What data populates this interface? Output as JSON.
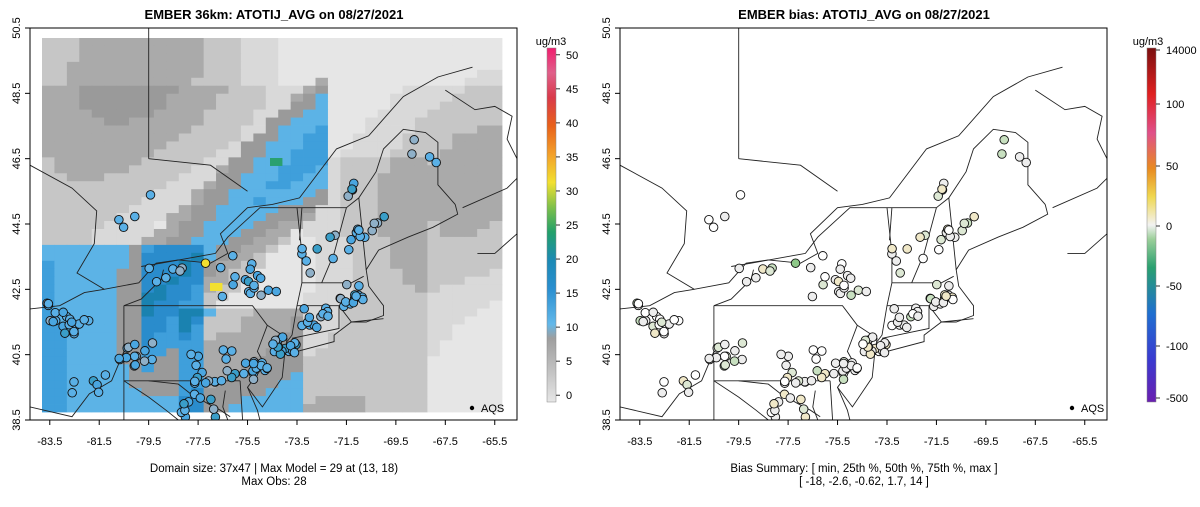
{
  "panels": [
    {
      "title": "EMBER 36km: ATOTIJ_AVG on 08/27/2021",
      "footer_line1": "Domain size: 37x47 | Max Model = 29 at (13, 18)",
      "footer_line2": "Max Obs: 28",
      "legend_label": "AQS"
    },
    {
      "title": "EMBER bias: ATOTIJ_AVG on 08/27/2021",
      "footer_line1": "Bias Summary: [ min, 25th %, 50th %, 75th %, max ]",
      "footer_line2": "[ -18,  -2.6,  -0.62,  1.7,  14 ]",
      "legend_label": "AQS"
    }
  ],
  "chart_data": [
    {
      "type": "heatmap",
      "title": "EMBER 36km: ATOTIJ_AVG on 08/27/2021",
      "xlabel": "",
      "ylabel": "",
      "x_ticks": [
        "-83.5",
        "-81.5",
        "-79.5",
        "-77.5",
        "-75.5",
        "-73.5",
        "-71.5",
        "-69.5",
        "-67.5",
        "-65.5"
      ],
      "y_ticks": [
        "38.5",
        "40.5",
        "42.5",
        "44.5",
        "46.5",
        "48.5",
        "50.5"
      ],
      "xlim": [
        -84.3,
        -64.6
      ],
      "ylim": [
        38.5,
        50.5
      ],
      "colorbar": {
        "unit": "ug/m3",
        "ticks": [
          "0",
          "5",
          "10",
          "15",
          "20",
          "25",
          "30",
          "35",
          "40",
          "45",
          "50"
        ],
        "range": [
          -1,
          51
        ],
        "colors": [
          "#d9d9d9",
          "#bdbdbd",
          "#9e9e9e",
          "#56b4e9",
          "#1f86c8",
          "#17a085",
          "#35a853",
          "#9bc53d",
          "#f2e030",
          "#f5a623",
          "#e8611a",
          "#d93a2a",
          "#e0457a",
          "#e85a8a",
          "#f0207a"
        ],
        "max_model": 29,
        "max_obs": 28,
        "domain_size": "37x47"
      },
      "legend": [
        {
          "name": "AQS",
          "marker": "circle"
        }
      ],
      "legend_position": "bottom-right"
    },
    {
      "type": "scatter",
      "title": "EMBER bias: ATOTIJ_AVG on 08/27/2021",
      "xlabel": "",
      "ylabel": "",
      "x_ticks": [
        "-83.5",
        "-81.5",
        "-79.5",
        "-77.5",
        "-75.5",
        "-73.5",
        "-71.5",
        "-69.5",
        "-67.5",
        "-65.5"
      ],
      "y_ticks": [
        "38.5",
        "40.5",
        "42.5",
        "44.5",
        "46.5",
        "48.5",
        "50.5"
      ],
      "xlim": [
        -84.3,
        -64.6
      ],
      "ylim": [
        38.5,
        50.5
      ],
      "colorbar": {
        "unit": "ug/m3",
        "ticks": [
          "14000",
          "100",
          "50",
          "0",
          "-50",
          "-100",
          "-500"
        ],
        "colors": [
          "#7b1a1a",
          "#d62020",
          "#e0457a",
          "#e08a2a",
          "#f0d020",
          "#f2f2f2",
          "#7fbf7b",
          "#2a9a6a",
          "#1f5fc8",
          "#5a2ac0",
          "#7b1fa2"
        ]
      },
      "bias_summary": {
        "min": -18,
        "p25": -2.6,
        "median": -0.62,
        "p75": 1.7,
        "max": 14
      },
      "legend": [
        {
          "name": "AQS",
          "marker": "circle"
        }
      ],
      "legend_position": "bottom-right"
    }
  ]
}
